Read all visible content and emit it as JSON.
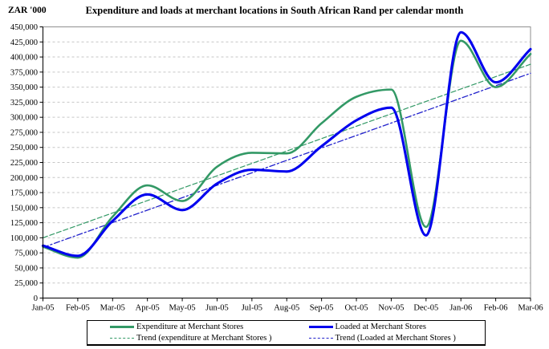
{
  "header": {
    "y_axis_unit_label": "ZAR '000",
    "title": "Expenditure and loads at merchant locations in South African Rand per calendar month"
  },
  "colors": {
    "expenditure": "#339966",
    "loaded": "#0000EE",
    "trend_expenditure": "#339966",
    "trend_loaded": "#2222CC",
    "gridline": "#c6c6c6",
    "axis": "#000000",
    "plot_border": "#8f8f8f",
    "background": "#ffffff"
  },
  "chart_data": {
    "type": "line",
    "title": "Expenditure and loads at merchant locations in South African Rand per calendar month",
    "y_unit_label": "ZAR '000",
    "xlabel": "",
    "ylabel": "ZAR '000",
    "grid": "horizontal-dashed",
    "legend_position": "bottom",
    "y_axis": {
      "min": 0,
      "max": 450000,
      "step": 25000,
      "tick_format": "comma"
    },
    "categories": [
      "Jan-05",
      "Feb-05",
      "Mar-05",
      "Apr-05",
      "May-05",
      "Jun-05",
      "Jul-05",
      "Aug-05",
      "Sep-05",
      "Oct-05",
      "Nov-05",
      "Dec-05",
      "Jan-06",
      "Feb-06",
      "Mar-06"
    ],
    "series": [
      {
        "name": "Expenditure at Merchant Stores",
        "kind": "data",
        "style": "solid",
        "smooth": true,
        "color": "#339966",
        "width": 2.6,
        "values": [
          85000,
          67000,
          135000,
          187000,
          161000,
          218000,
          241000,
          240000,
          290000,
          334000,
          346000,
          118000,
          427000,
          350000,
          405000
        ]
      },
      {
        "name": "Loaded at Merchant Stores",
        "kind": "data",
        "style": "solid",
        "smooth": true,
        "color": "#0000EE",
        "width": 3.1,
        "values": [
          87000,
          70000,
          128000,
          172000,
          146000,
          190000,
          213000,
          210000,
          252000,
          295000,
          316000,
          104000,
          441000,
          358000,
          413000
        ]
      },
      {
        "name": "Trend (expenditure at Merchant Stores )",
        "kind": "trend",
        "style": "dashed",
        "dash": "6,3",
        "color": "#339966",
        "width": 1.2,
        "start": 100000,
        "end": 388000
      },
      {
        "name": "Trend (Loaded at Merchant Stores )",
        "kind": "trend",
        "style": "dashed",
        "dash": "7,3,2,3",
        "color": "#2222CC",
        "width": 1.3,
        "start": 84000,
        "end": 373000
      }
    ]
  },
  "legend": {
    "entries": [
      {
        "label": "Expenditure at Merchant Stores",
        "color": "#339966",
        "style": "solid"
      },
      {
        "label": "Loaded at Merchant Stores",
        "color": "#0000EE",
        "style": "solid"
      },
      {
        "label": "Trend (expenditure at Merchant Stores )",
        "color": "#339966",
        "style": "dashed"
      },
      {
        "label": "Trend (Loaded at Merchant Stores )",
        "color": "#2222CC",
        "style": "dashed"
      }
    ]
  }
}
